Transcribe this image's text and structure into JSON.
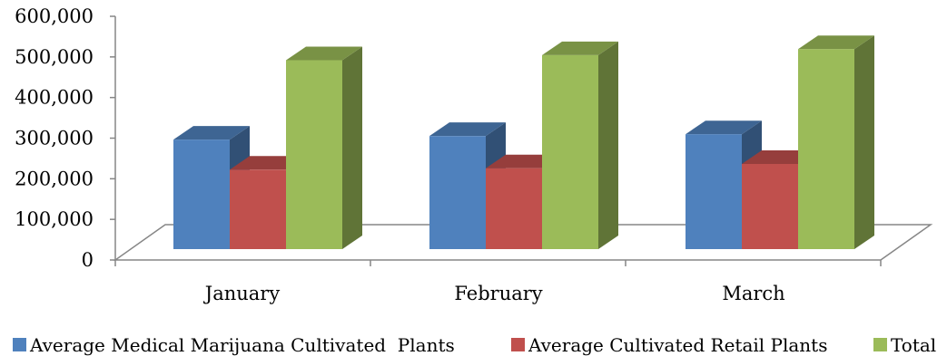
{
  "chart_data": {
    "type": "bar",
    "style": "3d-clustered-column",
    "categories": [
      "January",
      "February",
      "March"
    ],
    "series": [
      {
        "name": "Average Medical Marijuana Cultivated  Plants",
        "values": [
          306000,
          316000,
          321000
        ],
        "color": "#4F81BD"
      },
      {
        "name": "Average Cultivated Retail Plants",
        "values": [
          222000,
          226000,
          238000
        ],
        "color": "#C0504D"
      },
      {
        "name": "Total",
        "values": [
          528000,
          542000,
          559000
        ],
        "color": "#9BBB59"
      }
    ],
    "ylim": [
      0,
      600000
    ],
    "yticks": [
      0,
      100000,
      200000,
      300000,
      400000,
      500000,
      600000
    ],
    "ytick_labels": [
      "0",
      "100,000",
      "200,000",
      "300,000",
      "400,000",
      "500,000",
      "600,000"
    ],
    "grid": false,
    "legend": "bottom"
  }
}
